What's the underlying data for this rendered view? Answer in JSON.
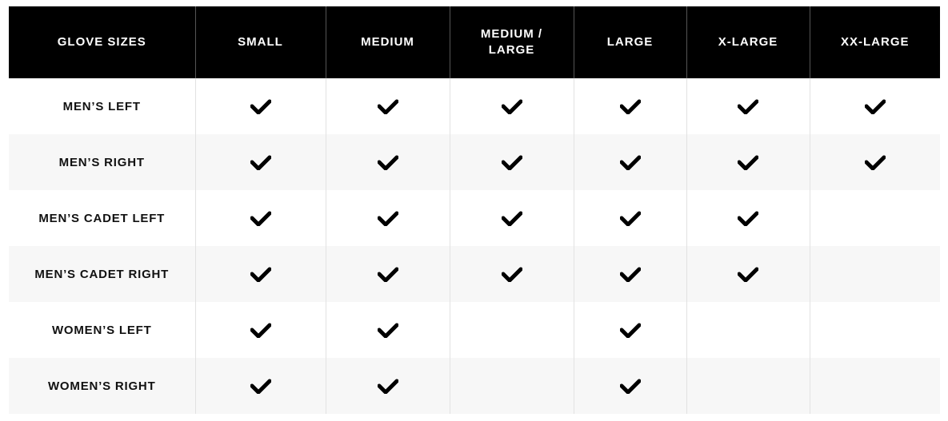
{
  "table": {
    "headers": [
      "GLOVE SIZES",
      "SMALL",
      "MEDIUM",
      "MEDIUM / LARGE",
      "LARGE",
      "X-LARGE",
      "XX-LARGE"
    ],
    "rows": [
      {
        "label": "MEN’S LEFT",
        "available": [
          true,
          true,
          true,
          true,
          true,
          true
        ]
      },
      {
        "label": "MEN’S RIGHT",
        "available": [
          true,
          true,
          true,
          true,
          true,
          true
        ]
      },
      {
        "label": "MEN’S CADET LEFT",
        "available": [
          true,
          true,
          true,
          true,
          true,
          false
        ]
      },
      {
        "label": "MEN’S CADET RIGHT",
        "available": [
          true,
          true,
          true,
          true,
          true,
          false
        ]
      },
      {
        "label": "WOMEN’S LEFT",
        "available": [
          true,
          true,
          false,
          true,
          false,
          false
        ]
      },
      {
        "label": "WOMEN’S RIGHT",
        "available": [
          true,
          true,
          false,
          true,
          false,
          false
        ]
      }
    ],
    "icon": "checkmark-icon",
    "colors": {
      "header_bg": "#000000",
      "header_text": "#ffffff",
      "alt_row_bg": "#f7f7f7"
    }
  }
}
